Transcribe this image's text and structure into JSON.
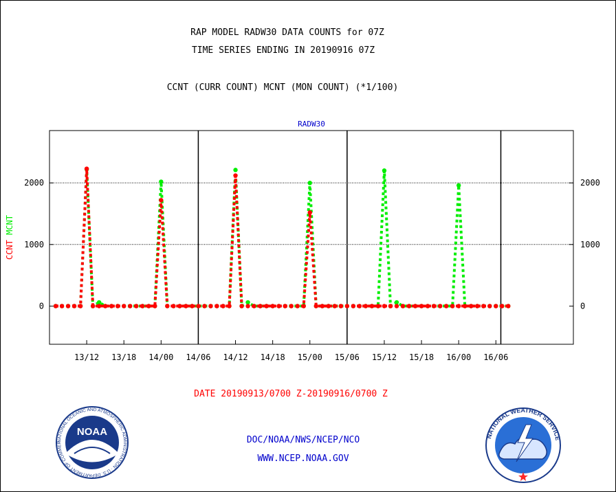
{
  "header": {
    "title_line1": "RAP MODEL RADW30 DATA COUNTS for 07Z",
    "title_line2": "TIME SERIES ENDING IN 20190916 07Z",
    "subtitle": "CCNT (CURR COUNT) MCNT (MON COUNT) (*1/100)"
  },
  "footer": {
    "date_range": "DATE 20190913/0700 Z-20190916/0700 Z",
    "org_line": "DOC/NOAA/NWS/NCEP/NCO",
    "url_line": "WWW.NCEP.NOAA.GOV"
  },
  "logos": {
    "noaa_text": "NOAA",
    "noaa_ring_text": "NATIONAL OCEANIC AND ATMOSPHERIC ADMINISTRATION · U.S. DEPARTMENT OF COMMERCE",
    "nws_ring_text": "NATIONAL WEATHER SERVICE"
  },
  "colors": {
    "ccnt": "#ff0000",
    "mcnt": "#00ee00",
    "text_blue": "#0000cc",
    "axis": "#000000"
  },
  "chart_data": {
    "type": "line",
    "title": "RADW30",
    "ylabel_parts": [
      {
        "text": "CCNT",
        "color": "#ff0000"
      },
      {
        "text": "MCNT",
        "color": "#00ee00"
      }
    ],
    "xlim_hours": [
      -6,
      78.5
    ],
    "ylim": [
      -620,
      2850
    ],
    "grid_y": [
      1000,
      2000
    ],
    "yticks": [
      0,
      1000,
      2000
    ],
    "ytick_labels": [
      "0",
      "1000",
      "2000"
    ],
    "xticks": [
      {
        "label": "13/12",
        "hour": 0
      },
      {
        "label": "13/18",
        "hour": 6
      },
      {
        "label": "14/00",
        "hour": 12
      },
      {
        "label": "14/06",
        "hour": 18
      },
      {
        "label": "14/12",
        "hour": 24
      },
      {
        "label": "14/18",
        "hour": 30
      },
      {
        "label": "15/00",
        "hour": 36
      },
      {
        "label": "15/06",
        "hour": 42
      },
      {
        "label": "15/12",
        "hour": 48
      },
      {
        "label": "15/18",
        "hour": 54
      },
      {
        "label": "16/00",
        "hour": 60
      },
      {
        "label": "16/06",
        "hour": 66
      }
    ],
    "day_separators_hours": [
      18,
      42,
      66.8
    ],
    "series": [
      {
        "name": "MCNT",
        "color": "#00ee00",
        "x": [
          -5,
          -4,
          -3,
          -2,
          -1,
          0,
          1,
          2,
          3,
          4,
          5,
          6,
          7,
          8,
          9,
          10,
          11,
          12,
          13,
          14,
          15,
          16,
          17,
          18,
          19,
          20,
          21,
          22,
          23,
          24,
          25,
          26,
          27,
          28,
          29,
          30,
          31,
          32,
          33,
          34,
          35,
          36,
          37,
          38,
          39,
          40,
          41,
          42,
          43,
          44,
          45,
          46,
          47,
          48,
          49,
          50,
          51,
          52,
          53,
          54,
          55,
          56,
          57,
          58,
          59,
          60,
          61,
          62,
          63,
          64,
          65,
          66,
          67,
          68
        ],
        "y": [
          0,
          0,
          0,
          0,
          0,
          2220,
          0,
          60,
          0,
          0,
          0,
          0,
          0,
          0,
          0,
          0,
          0,
          2020,
          0,
          0,
          0,
          0,
          0,
          0,
          0,
          0,
          0,
          0,
          0,
          2210,
          0,
          60,
          0,
          0,
          0,
          0,
          0,
          0,
          0,
          0,
          0,
          2000,
          0,
          0,
          0,
          0,
          0,
          0,
          0,
          0,
          0,
          0,
          0,
          2200,
          0,
          60,
          0,
          0,
          0,
          0,
          0,
          0,
          0,
          0,
          0,
          1960,
          0,
          0,
          0,
          0,
          0,
          0,
          0,
          0
        ]
      },
      {
        "name": "CCNT",
        "color": "#ff0000",
        "x": [
          -5,
          -4,
          -3,
          -2,
          -1,
          0,
          1,
          2,
          3,
          4,
          5,
          6,
          7,
          8,
          9,
          10,
          11,
          12,
          13,
          14,
          15,
          16,
          17,
          18,
          19,
          20,
          21,
          22,
          23,
          24,
          25,
          26,
          27,
          28,
          29,
          30,
          31,
          32,
          33,
          34,
          35,
          36,
          37,
          38,
          39,
          40,
          41,
          42,
          43,
          44,
          45,
          46,
          47,
          48,
          49,
          50,
          51,
          52,
          53,
          54,
          55,
          56,
          57,
          58,
          59,
          60,
          61,
          62,
          63,
          64,
          65,
          66,
          67,
          68
        ],
        "y": [
          0,
          0,
          0,
          0,
          0,
          2230,
          0,
          0,
          0,
          0,
          0,
          0,
          0,
          0,
          0,
          0,
          0,
          1720,
          0,
          0,
          0,
          0,
          0,
          0,
          0,
          0,
          0,
          0,
          0,
          2120,
          0,
          0,
          0,
          0,
          0,
          0,
          0,
          0,
          0,
          0,
          0,
          1520,
          0,
          0,
          0,
          0,
          0,
          0,
          0,
          0,
          0,
          0,
          0,
          0,
          0,
          0,
          0,
          0,
          0,
          0,
          0,
          0,
          0,
          0,
          0,
          0,
          0,
          0,
          0,
          0,
          0,
          0,
          0,
          0
        ]
      }
    ]
  }
}
